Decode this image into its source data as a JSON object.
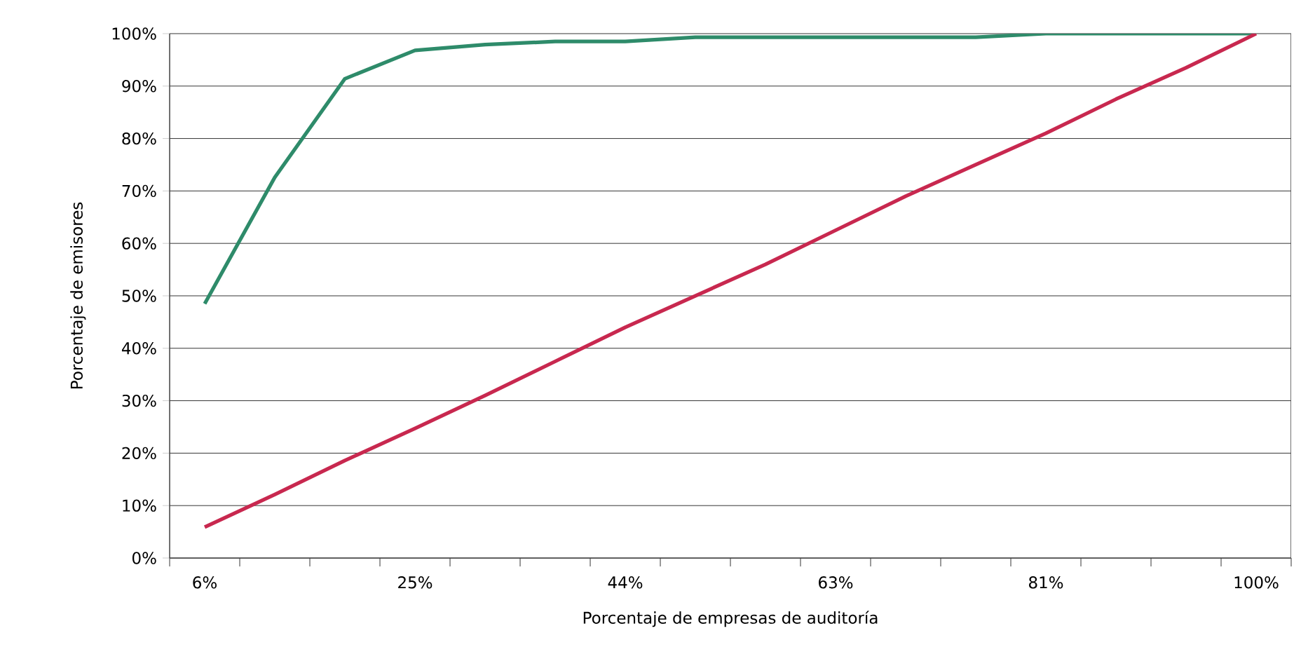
{
  "chart_data": {
    "type": "line",
    "xlabel": "Porcentaje de empresas de auditoría",
    "ylabel": "Porcentaje de emisores",
    "categories": [
      "6%",
      null,
      null,
      "25%",
      null,
      null,
      "44%",
      null,
      null,
      "63%",
      null,
      null,
      "81%",
      null,
      null,
      "100%"
    ],
    "series": [
      {
        "color": "#2e8b6a",
        "values": [
          48.5,
          72.6,
          91.4,
          96.8,
          97.9,
          98.5,
          98.5,
          99.3,
          99.3,
          99.3,
          99.3,
          99.3,
          100,
          100,
          100,
          100
        ]
      },
      {
        "color": "#c8284f",
        "values": [
          5.9,
          12.1,
          18.6,
          24.7,
          31,
          37.5,
          44,
          50,
          56,
          62.5,
          69,
          75,
          81,
          87.5,
          93.5,
          100
        ]
      }
    ],
    "ylim": [
      0,
      100
    ],
    "yticks": [
      {
        "value": 0,
        "label": "0%"
      },
      {
        "value": 10,
        "label": "10%"
      },
      {
        "value": 20,
        "label": "20%"
      },
      {
        "value": 30,
        "label": "30%"
      },
      {
        "value": 40,
        "label": "40%"
      },
      {
        "value": 50,
        "label": "50%"
      },
      {
        "value": 60,
        "label": "60%"
      },
      {
        "value": 70,
        "label": "70%"
      },
      {
        "value": 80,
        "label": "80%"
      },
      {
        "value": 90,
        "label": "90%"
      },
      {
        "value": 100,
        "label": "100%"
      }
    ],
    "grid": "y",
    "marker": "none",
    "line_style": "solid"
  }
}
